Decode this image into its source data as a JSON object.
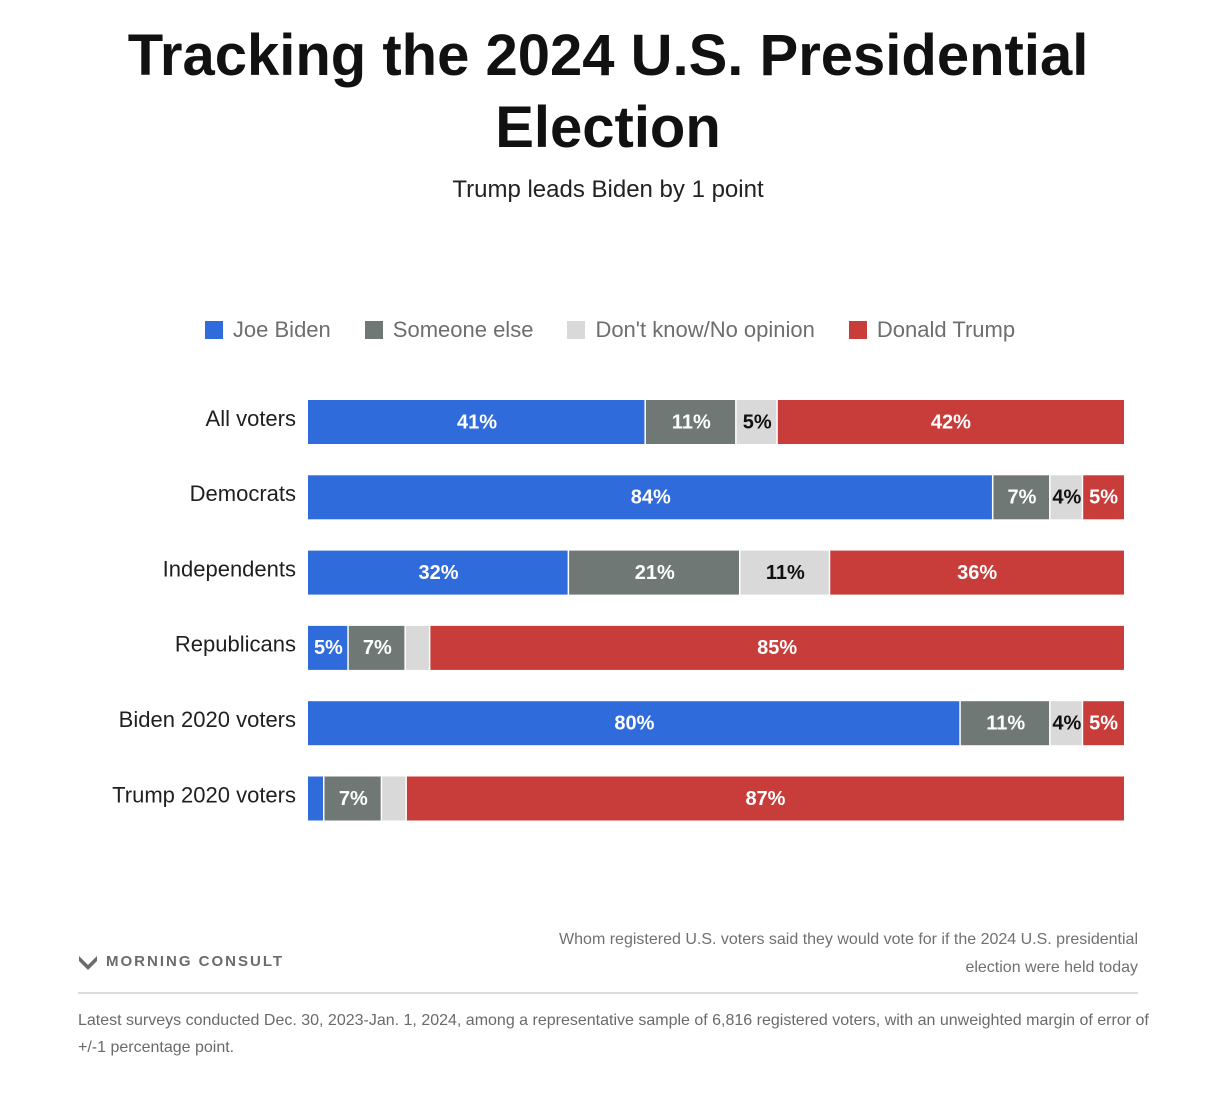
{
  "title": "Tracking the 2024 U.S. Presidential Election",
  "subtitle": "Trump leads Biden by 1 point",
  "colors": {
    "biden": "#2f6bdb",
    "someone_else": "#707876",
    "dont_know": "#d9d9d9",
    "trump": "#c83c3a"
  },
  "chart_data": {
    "type": "bar",
    "orientation": "horizontal",
    "stacked": true,
    "title": "Tracking the 2024 U.S. Presidential Election",
    "subtitle": "Trump leads Biden by 1 point",
    "xlabel": "",
    "ylabel": "",
    "xlim": [
      0,
      100
    ],
    "legend_position": "top-center",
    "categories": [
      "All voters",
      "Democrats",
      "Independents",
      "Republicans",
      "Biden 2020 voters",
      "Trump 2020 voters"
    ],
    "series": [
      {
        "name": "Joe Biden",
        "color": "#2f6bdb",
        "values": [
          41,
          84,
          32,
          5,
          80,
          2
        ],
        "labels": [
          "41%",
          "84%",
          "32%",
          "5%",
          "80%",
          ""
        ]
      },
      {
        "name": "Someone else",
        "color": "#707876",
        "values": [
          11,
          7,
          21,
          7,
          11,
          7
        ],
        "labels": [
          "11%",
          "7%",
          "21%",
          "7%",
          "11%",
          "7%"
        ]
      },
      {
        "name": "Don't know/No opinion",
        "color": "#d9d9d9",
        "values": [
          5,
          4,
          11,
          3,
          4,
          3
        ],
        "labels": [
          "5%",
          "4%",
          "11%",
          "",
          "4%",
          ""
        ]
      },
      {
        "name": "Donald Trump",
        "color": "#c83c3a",
        "values": [
          42,
          5,
          36,
          85,
          5,
          87
        ],
        "labels": [
          "42%",
          "5%",
          "36%",
          "85%",
          "5%",
          "87%"
        ]
      }
    ]
  },
  "footer": {
    "brand": "MORNING CONSULT",
    "note": "Whom registered U.S. voters said they would vote for if the 2024 U.S. presidential election were held today",
    "methodology": "Latest surveys conducted Dec. 30, 2023-Jan. 1, 2024, among a representative sample of 6,816 registered voters, with an unweighted margin of error of +/-1 percentage point."
  }
}
